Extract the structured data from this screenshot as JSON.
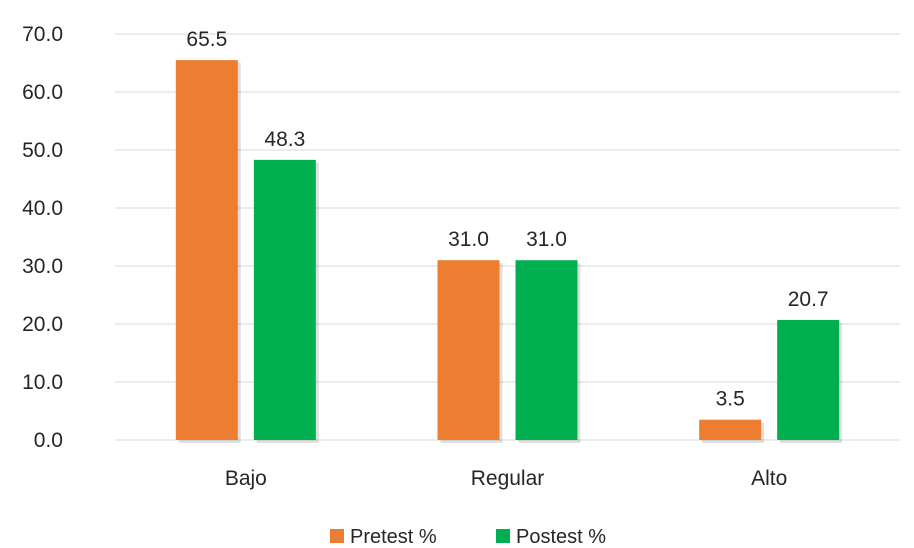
{
  "chart_data": {
    "type": "bar",
    "categories": [
      "Bajo",
      "Regular",
      "Alto"
    ],
    "series": [
      {
        "name": "Pretest %",
        "values": [
          65.5,
          31.0,
          3.5
        ],
        "color": "#ED7D31"
      },
      {
        "name": "Postest %",
        "values": [
          48.3,
          31.0,
          20.7
        ],
        "color": "#00B050"
      }
    ],
    "value_labels": [
      [
        "65.5",
        "31.0",
        "3.5"
      ],
      [
        "48.3",
        "31.0",
        "20.7"
      ]
    ],
    "yticks": [
      "0.0",
      "10.0",
      "20.0",
      "30.0",
      "40.0",
      "50.0",
      "60.0",
      "70.0"
    ],
    "ylim": [
      0,
      70
    ],
    "title": "",
    "xlabel": "",
    "ylabel": "",
    "grid": true,
    "legend_position": "bottom"
  }
}
